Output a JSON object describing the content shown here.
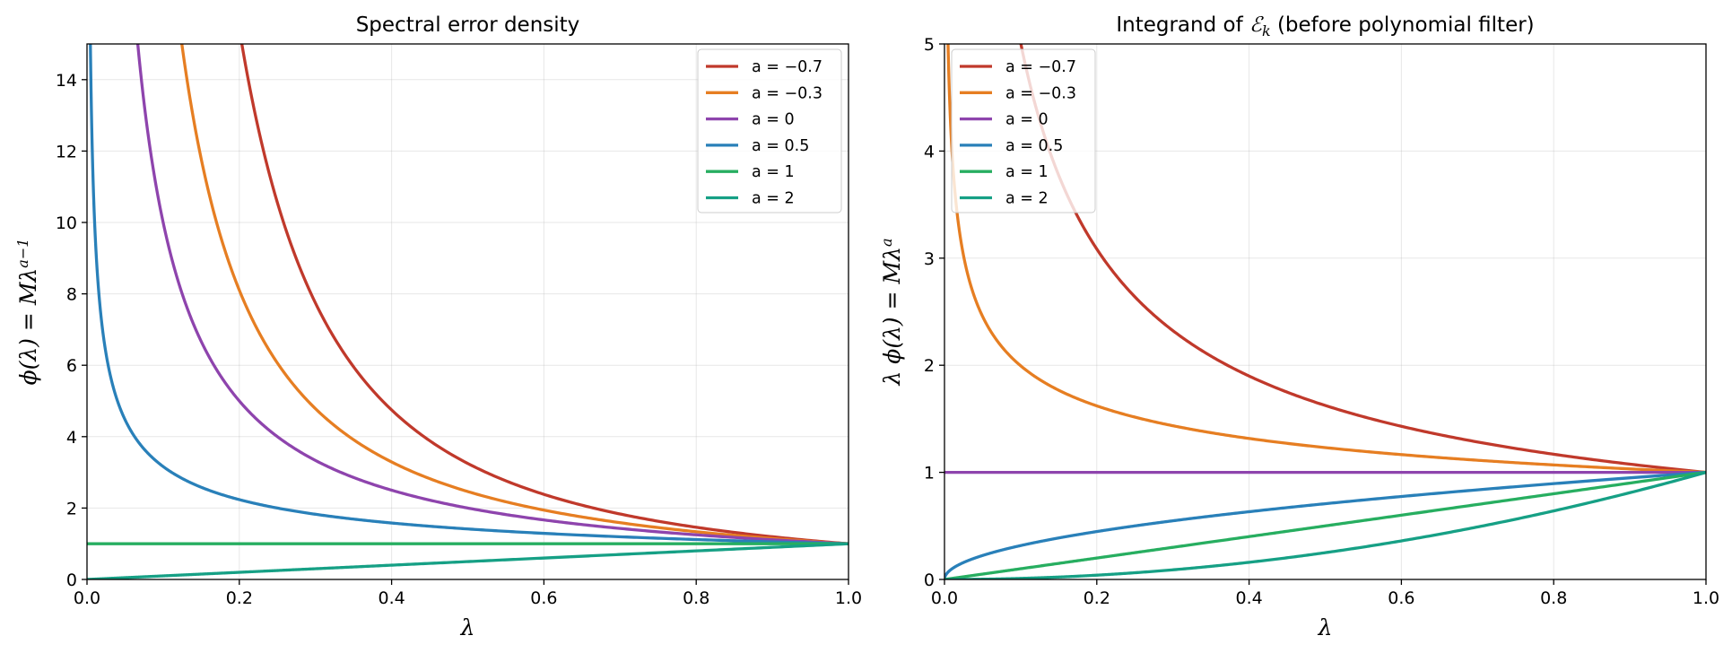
{
  "chart_data": [
    {
      "type": "line",
      "title": "Spectral error density",
      "xlabel": "λ",
      "ylabel": "ϕ(λ) = Mλ^(a−1)",
      "function": "M*lambda^(a-1)",
      "M": 1,
      "xlim": [
        0,
        1.0
      ],
      "ylim": [
        0,
        15
      ],
      "xticks": [
        "0.0",
        "0.2",
        "0.4",
        "0.6",
        "0.8",
        "1.0"
      ],
      "yticks": [
        "0",
        "2",
        "4",
        "6",
        "8",
        "10",
        "12",
        "14"
      ],
      "grid": true,
      "legend_position": "top-right",
      "series": [
        {
          "name": "a = −0.7",
          "a": -0.7,
          "color": "#c0392b"
        },
        {
          "name": "a = −0.3",
          "a": -0.3,
          "color": "#e67e22"
        },
        {
          "name": "a = 0",
          "a": 0,
          "color": "#8e44ad"
        },
        {
          "name": "a = 0.5",
          "a": 0.5,
          "color": "#2980b9"
        },
        {
          "name": "a = 1",
          "a": 1,
          "color": "#27ae60"
        },
        {
          "name": "a = 2",
          "a": 2,
          "color": "#16a085"
        }
      ]
    },
    {
      "type": "line",
      "title": "Integrand of ℰk (before polynomial filter)",
      "xlabel": "λ",
      "ylabel": "λ ϕ(λ) = Mλ^a",
      "function": "M*lambda^a",
      "M": 1,
      "xlim": [
        0,
        1.0
      ],
      "ylim": [
        0,
        5
      ],
      "xticks": [
        "0.0",
        "0.2",
        "0.4",
        "0.6",
        "0.8",
        "1.0"
      ],
      "yticks": [
        "0",
        "1",
        "2",
        "3",
        "4",
        "5"
      ],
      "grid": true,
      "legend_position": "top-left",
      "series": [
        {
          "name": "a = −0.7",
          "a": -0.7,
          "color": "#c0392b"
        },
        {
          "name": "a = −0.3",
          "a": -0.3,
          "color": "#e67e22"
        },
        {
          "name": "a = 0",
          "a": 0,
          "color": "#8e44ad"
        },
        {
          "name": "a = 0.5",
          "a": 0.5,
          "color": "#2980b9"
        },
        {
          "name": "a = 1",
          "a": 1,
          "color": "#27ae60"
        },
        {
          "name": "a = 2",
          "a": 2,
          "color": "#16a085"
        }
      ]
    }
  ]
}
